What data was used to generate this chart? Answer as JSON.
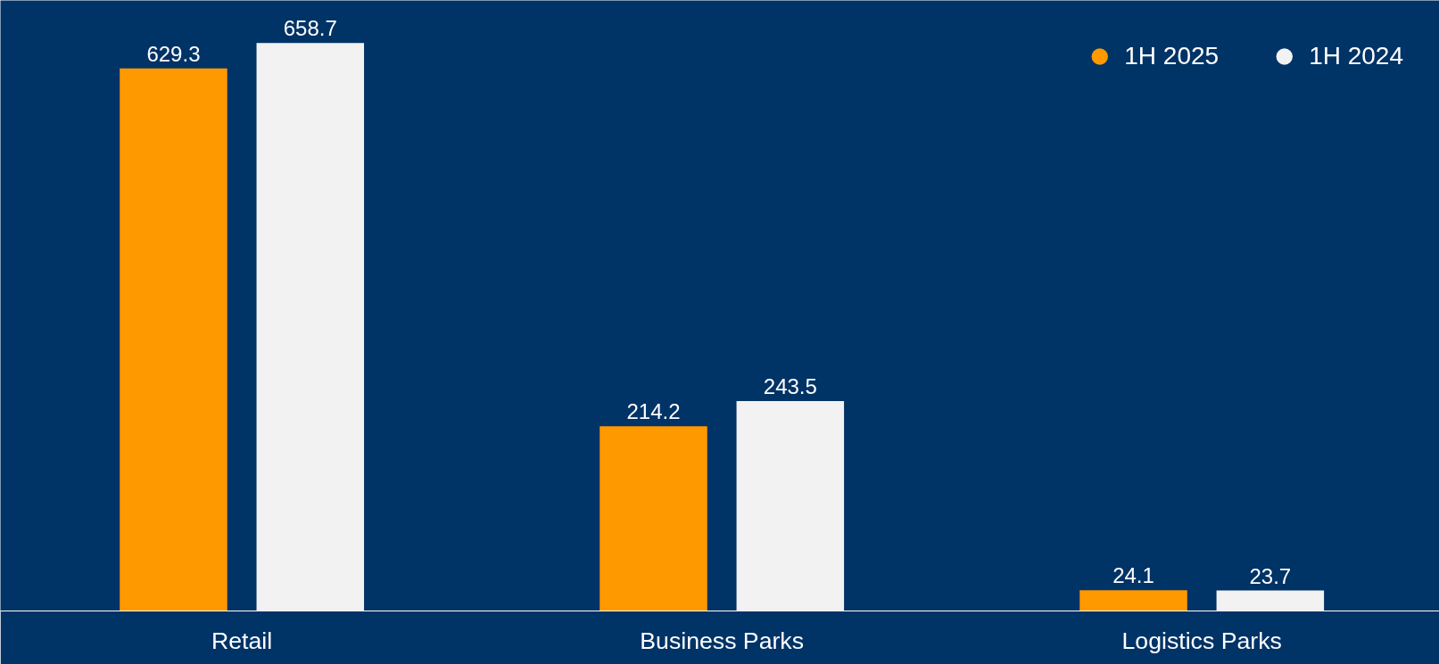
{
  "chart_data": {
    "type": "bar",
    "categories": [
      "Retail",
      "Business Parks",
      "Logistics Parks"
    ],
    "series": [
      {
        "name": "1H 2025",
        "color": "#ff9900",
        "values": [
          629.3,
          214.2,
          24.1
        ]
      },
      {
        "name": "1H 2024",
        "color": "#f2f2f2",
        "values": [
          658.7,
          243.5,
          23.7
        ]
      }
    ],
    "data_labels": true,
    "legend": "top right",
    "grid": false,
    "marker": "circle"
  }
}
